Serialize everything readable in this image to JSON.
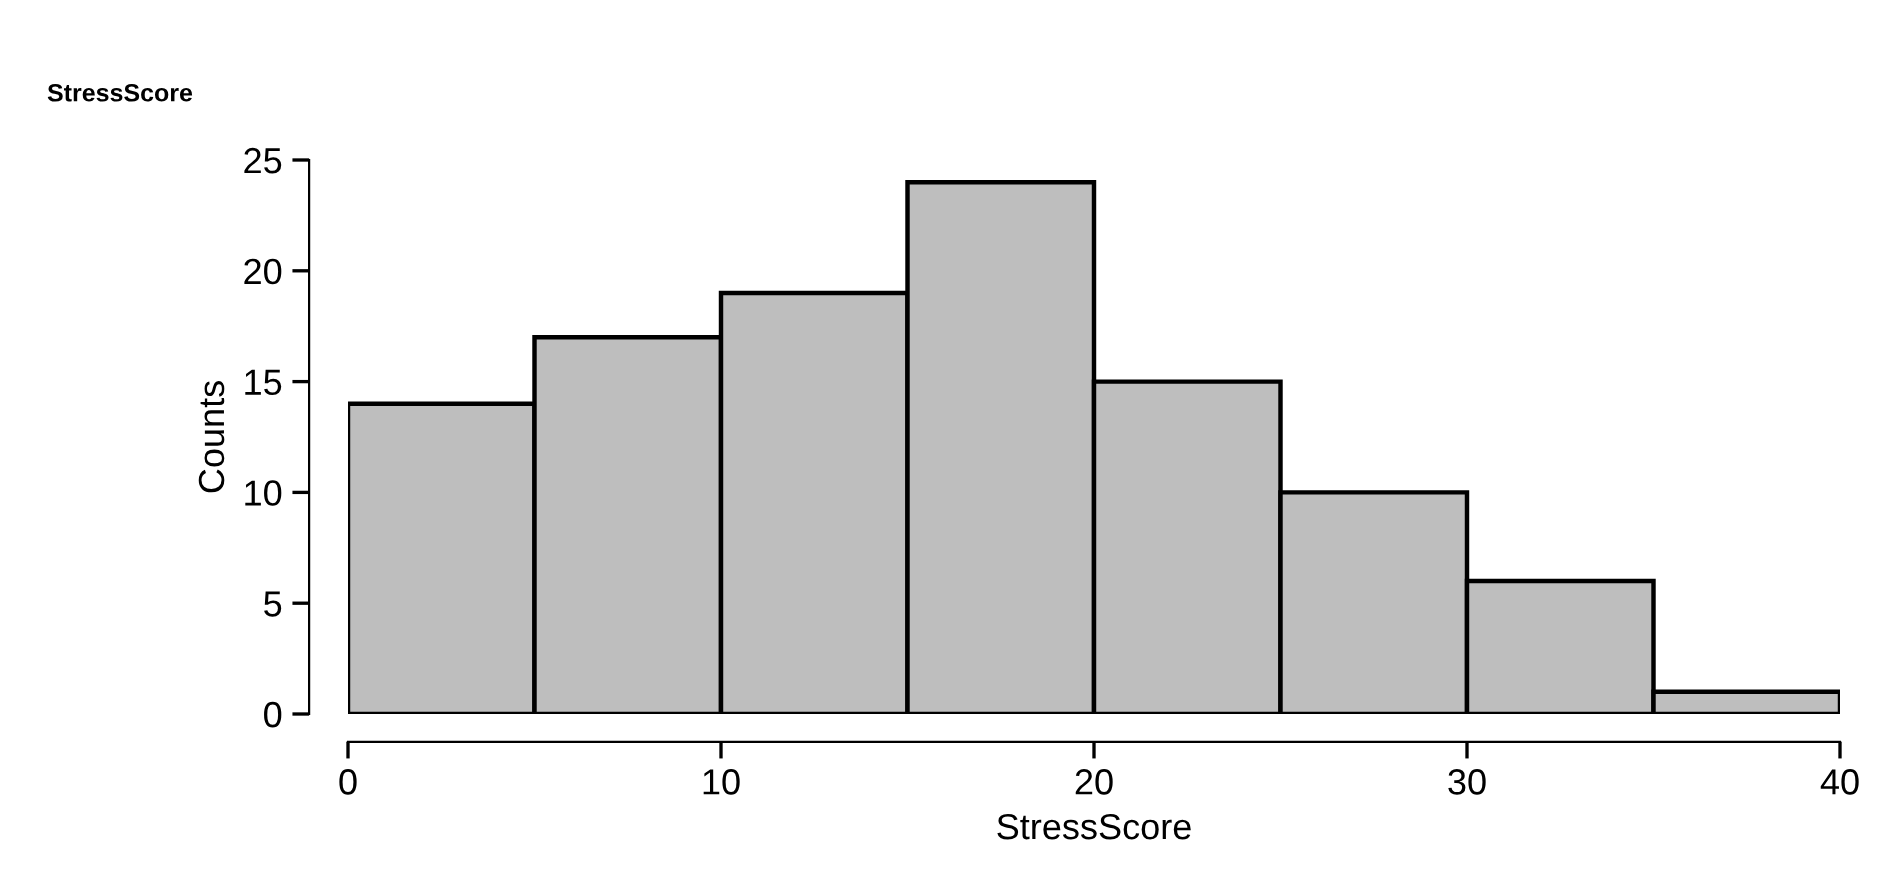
{
  "chart_data": {
    "type": "histogram",
    "title": "StressScore",
    "xlabel": "StressScore",
    "ylabel": "Counts",
    "bins": [
      0,
      5,
      10,
      15,
      20,
      25,
      30,
      35,
      40
    ],
    "values": [
      14,
      17,
      19,
      24,
      15,
      10,
      6,
      1
    ],
    "color": "#bebebe",
    "xlim": [
      0,
      40
    ],
    "ylim": [
      0,
      25
    ],
    "xticks": [
      0,
      10,
      20,
      30,
      40
    ],
    "yticks": [
      0,
      5,
      10,
      15,
      20,
      25
    ],
    "grid": false,
    "legend": false
  }
}
